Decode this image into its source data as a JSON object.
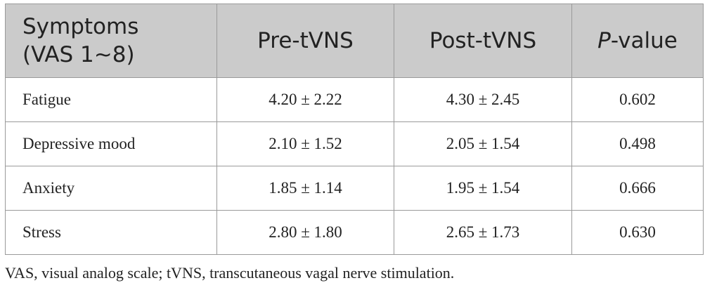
{
  "table": {
    "header": [
      "Symptoms (VAS 1∼8)",
      "Pre-tVNS",
      "Post-tVNS",
      "P-value"
    ],
    "rows": [
      [
        "Fatigue",
        "4.20 ± 2.22",
        "4.30 ± 2.45",
        "0.602"
      ],
      [
        "Depressive mood",
        "2.10 ± 1.52",
        "2.05 ± 1.54",
        "0.498"
      ],
      [
        "Anxiety",
        "1.85 ± 1.14",
        "1.95 ± 1.54",
        "0.666"
      ],
      [
        "Stress",
        "2.80 ± 1.80",
        "2.65 ± 1.73",
        "0.630"
      ]
    ]
  },
  "footnote": "VAS, visual analog scale; tVNS, transcutaneous vagal nerve stimulation."
}
